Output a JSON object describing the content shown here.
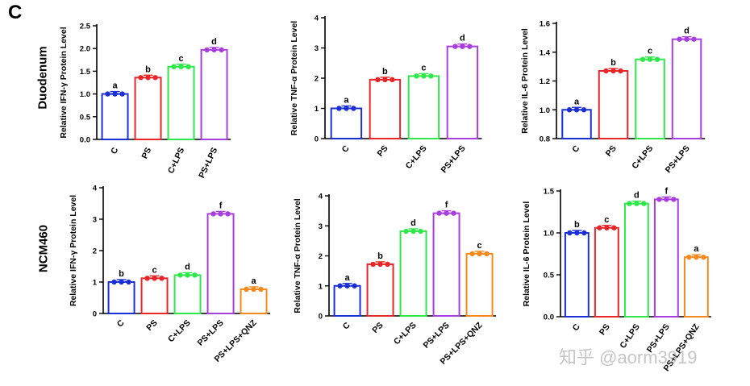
{
  "panel_letter": "C",
  "row_labels": [
    "Duodenum",
    "NCM460"
  ],
  "watermark": "知乎 @aorm3919",
  "colors": {
    "C": "#1b2fd6",
    "PS": "#e8262a",
    "C+LPS": "#2ee84a",
    "PS+LPS": "#a93ee0",
    "PS+LPS+QNZ": "#f48a1f"
  },
  "chart_data": [
    {
      "type": "bar",
      "ylabel": "Relative IFN-γ Protein Level",
      "ylim": [
        0,
        2.5
      ],
      "yticks": [
        "0.0",
        "0.5",
        "1.0",
        "1.5",
        "2.0",
        "2.5"
      ],
      "categories": [
        "C",
        "PS",
        "C+LPS",
        "PS+LPS"
      ],
      "values": [
        1.0,
        1.36,
        1.6,
        1.97
      ],
      "letters": [
        "a",
        "b",
        "c",
        "d"
      ]
    },
    {
      "type": "bar",
      "ylabel": "Relative TNF-α Protein Level",
      "ylim": [
        0,
        4
      ],
      "yticks": [
        "0",
        "1",
        "2",
        "3",
        "4"
      ],
      "categories": [
        "C",
        "PS",
        "C+LPS",
        "PS+LPS"
      ],
      "values": [
        1.0,
        1.95,
        2.07,
        3.05
      ],
      "letters": [
        "a",
        "b",
        "c",
        "d"
      ]
    },
    {
      "type": "bar",
      "ylabel": "Relative IL-6 Protein Level",
      "ylim": [
        0.8,
        1.6
      ],
      "yticks": [
        "0.8",
        "1.0",
        "1.2",
        "1.4",
        "1.6"
      ],
      "categories": [
        "C",
        "PS",
        "C+LPS",
        "PS+LPS"
      ],
      "values": [
        1.0,
        1.27,
        1.35,
        1.49
      ],
      "letters": [
        "a",
        "b",
        "c",
        "d"
      ]
    },
    {
      "type": "bar",
      "ylabel": "Relative IFN-γ Protein Level",
      "ylim": [
        0,
        4
      ],
      "yticks": [
        "0",
        "1",
        "2",
        "3",
        "4"
      ],
      "categories": [
        "C",
        "PS",
        "C+LPS",
        "PS+LPS",
        "PS+LPS+QNZ"
      ],
      "values": [
        1.0,
        1.12,
        1.22,
        3.17,
        0.77
      ],
      "letters": [
        "b",
        "c",
        "d",
        "f",
        "a"
      ]
    },
    {
      "type": "bar",
      "ylabel": "Relative TNF-α Protein Level",
      "ylim": [
        0,
        4
      ],
      "yticks": [
        "0",
        "1",
        "2",
        "3",
        "4"
      ],
      "categories": [
        "C",
        "PS",
        "C+LPS",
        "PS+LPS",
        "PS+LPS+QNZ"
      ],
      "values": [
        1.0,
        1.72,
        2.82,
        3.42,
        2.07
      ],
      "letters": [
        "a",
        "b",
        "d",
        "f",
        "c"
      ]
    },
    {
      "type": "bar",
      "ylabel": "Relative IL-6 Protein Level",
      "ylim": [
        0,
        1.5
      ],
      "yticks": [
        "0.0",
        "0.5",
        "1.0",
        "1.5"
      ],
      "categories": [
        "C",
        "PS",
        "C+LPS",
        "PS+LPS",
        "PS+LPS+QNZ"
      ],
      "values": [
        1.0,
        1.06,
        1.35,
        1.4,
        0.71
      ],
      "letters": [
        "b",
        "c",
        "d",
        "f",
        "a"
      ]
    }
  ]
}
